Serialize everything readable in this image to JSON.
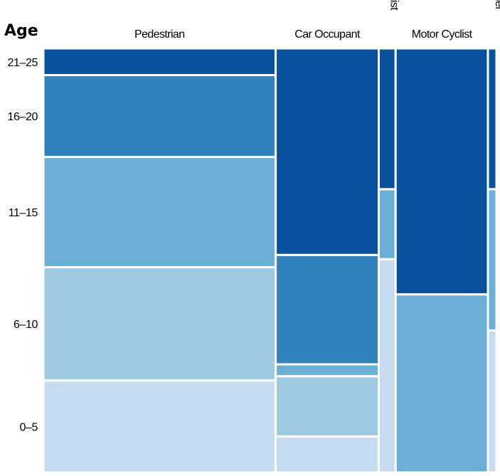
{
  "chart_data": {
    "type": "mosaic",
    "ylabel": "Age",
    "categories": [
      "Pedestrian",
      "Car Occupant",
      "Cyclist",
      "Motor Cyclist",
      "Other"
    ],
    "category_share": [
      0.5474,
      0.2429,
      0.0398,
      0.2175,
      0.0201
    ],
    "vertical_categories": [
      false,
      false,
      true,
      false,
      true
    ],
    "age_groups": [
      "0–5",
      "6–10",
      "11–15",
      "16–20",
      "21–25"
    ],
    "proportions": [
      [
        0.217,
        0.267,
        0.26,
        0.193,
        0.063
      ],
      [
        0.085,
        0.142,
        0.028,
        0.258,
        0.487
      ],
      [
        0.503,
        0.0,
        0.165,
        0.0,
        0.332
      ],
      [
        0.0,
        0.0,
        0.42,
        0.0,
        0.58
      ],
      [
        0.335,
        0.0,
        0.333,
        0.0,
        0.332
      ]
    ],
    "age_colors": [
      "#c6dbef",
      "#9ecae1",
      "#6baed6",
      "#3182bd",
      "#08519c"
    ]
  }
}
